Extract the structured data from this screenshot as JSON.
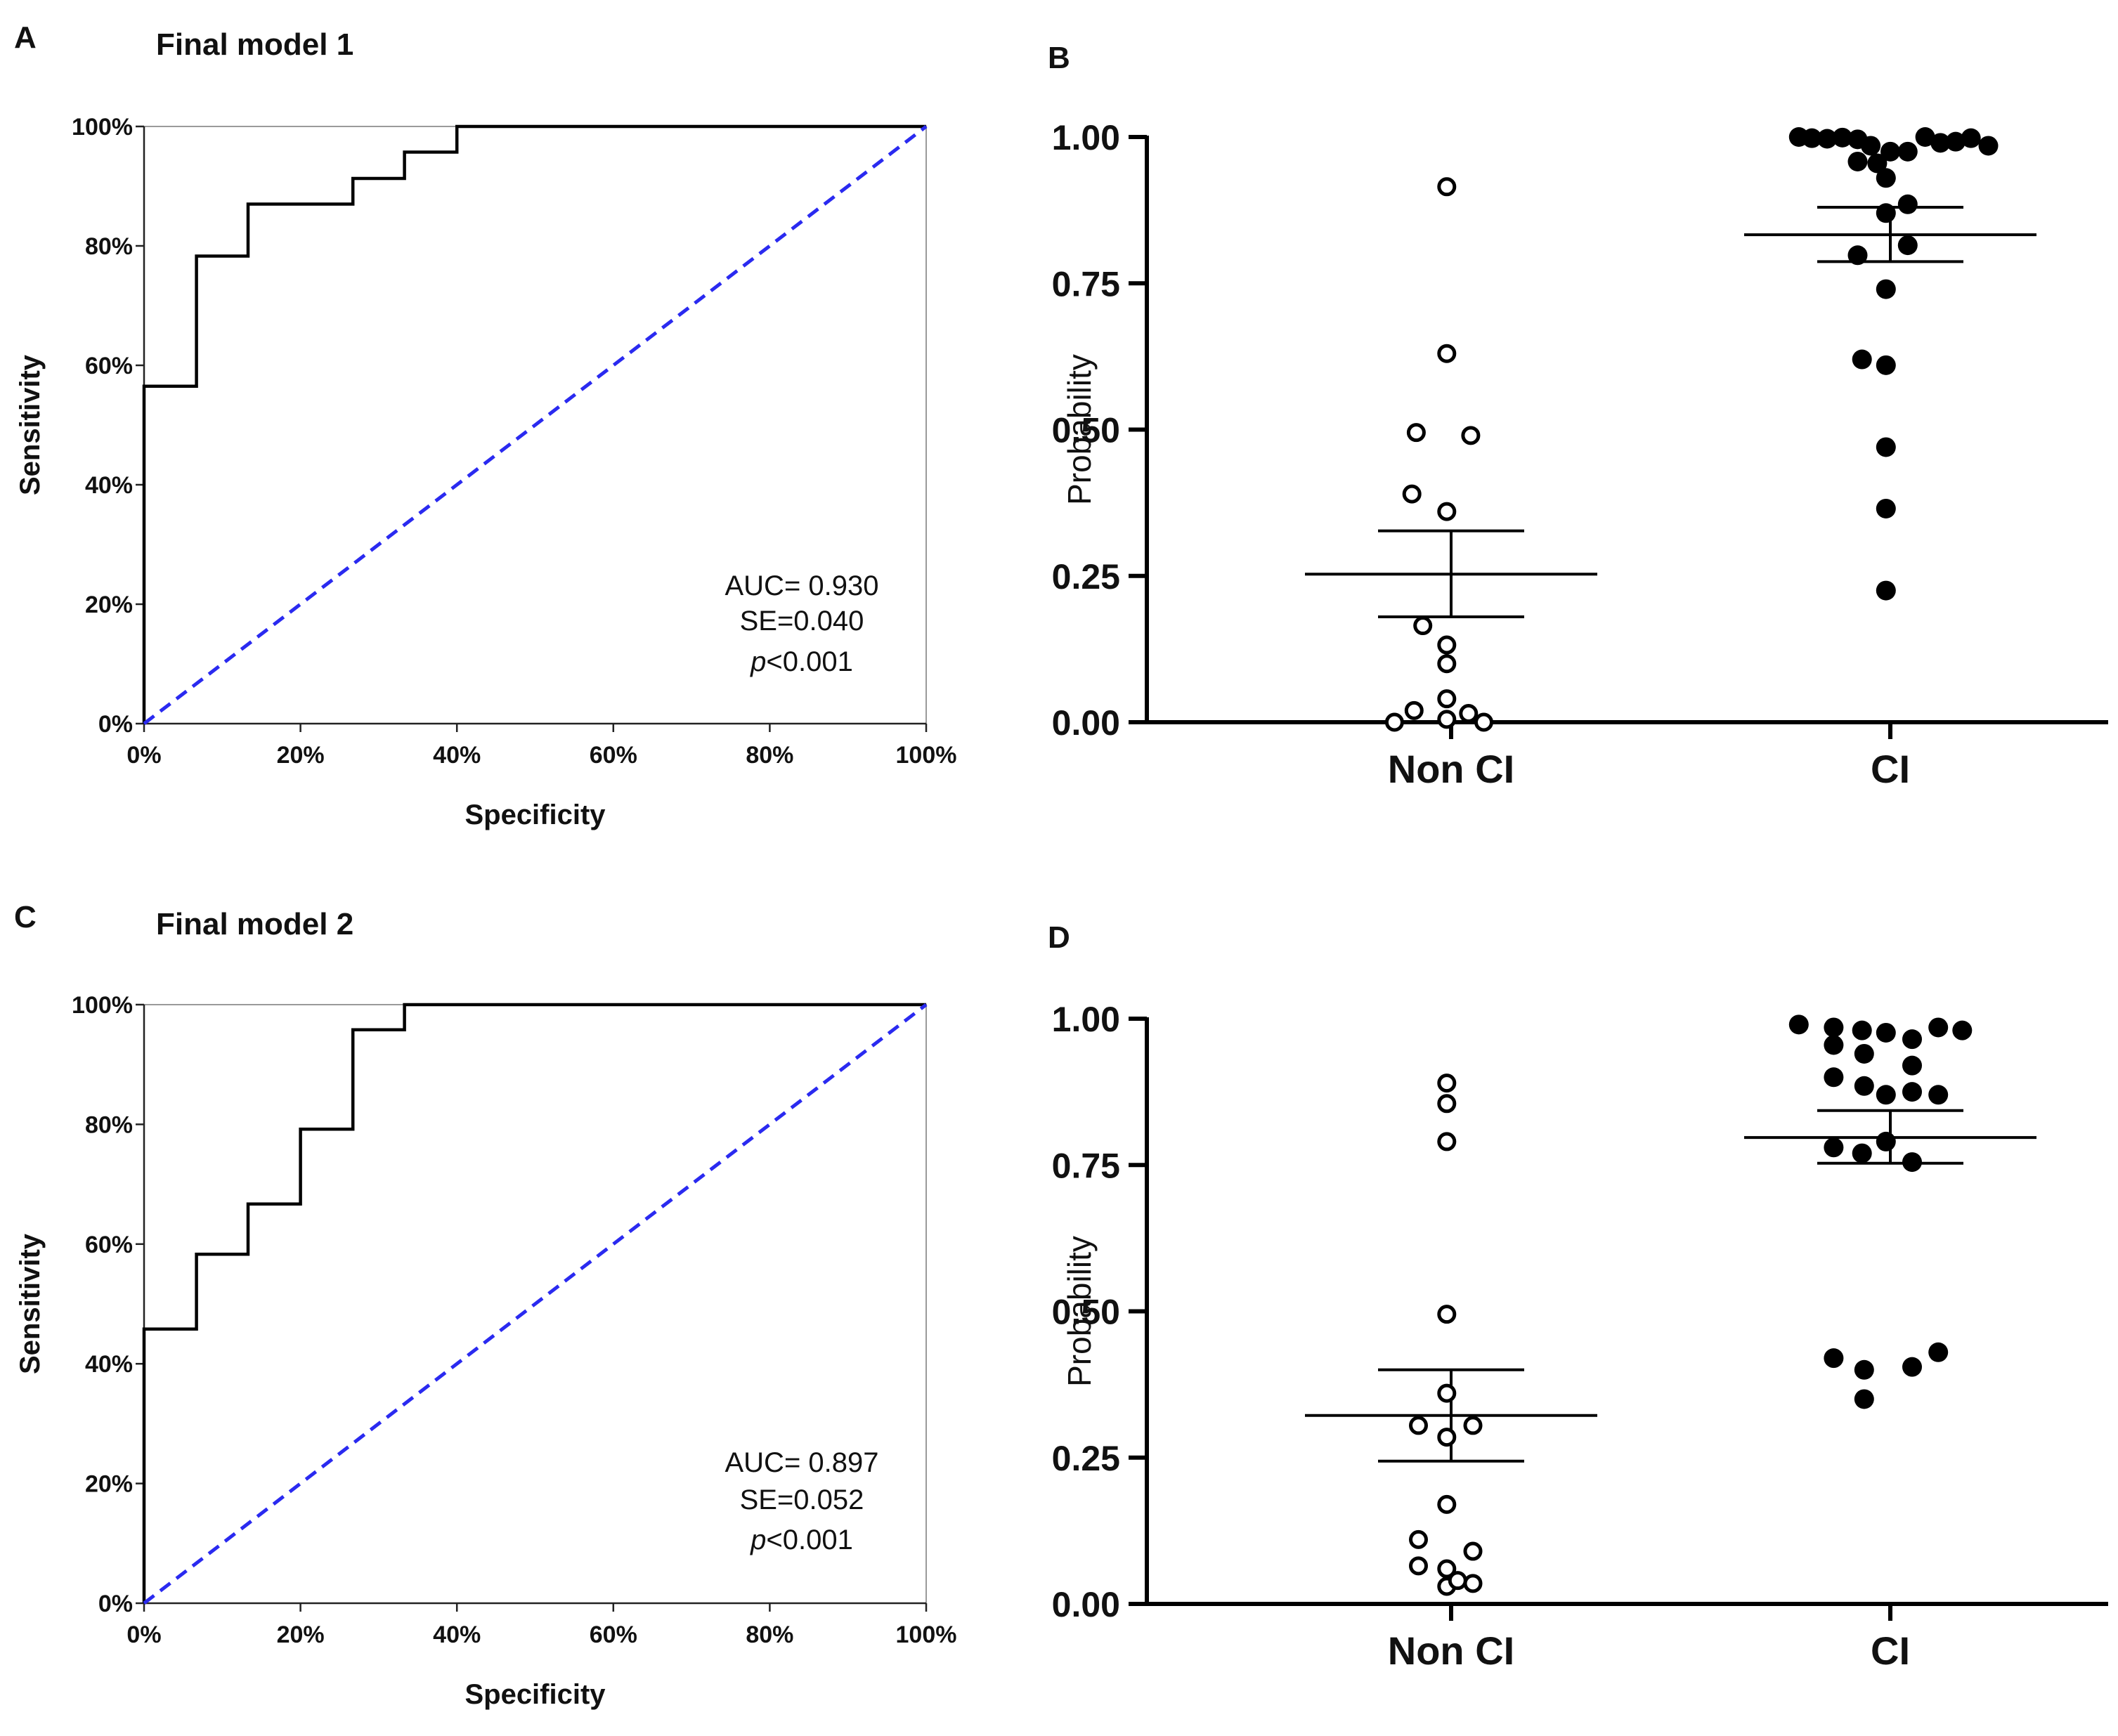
{
  "figure": {
    "panels": {
      "A": {
        "letter": "A"
      },
      "B": {
        "letter": "B"
      },
      "C": {
        "letter": "C"
      },
      "D": {
        "letter": "D"
      }
    }
  },
  "chart_data": [
    {
      "id": "A",
      "type": "line",
      "subtype": "roc_curve",
      "title": "Final model 1",
      "xlabel": "Specificity",
      "ylabel": "Sensitivity",
      "xlim": [
        0,
        100
      ],
      "ylim": [
        0,
        100
      ],
      "x_ticks": [
        "0%",
        "20%",
        "40%",
        "60%",
        "80%",
        "100%"
      ],
      "y_ticks": [
        "0%",
        "20%",
        "40%",
        "60%",
        "80%",
        "100%"
      ],
      "series": [
        {
          "name": "ROC",
          "color": "#000000",
          "style": "step",
          "points": [
            [
              0,
              0
            ],
            [
              0,
              56.5
            ],
            [
              6.7,
              56.5
            ],
            [
              6.7,
              78.3
            ],
            [
              13.3,
              78.3
            ],
            [
              13.3,
              87
            ],
            [
              26.7,
              87
            ],
            [
              26.7,
              91.3
            ],
            [
              33.3,
              91.3
            ],
            [
              33.3,
              95.7
            ],
            [
              40,
              95.7
            ],
            [
              40,
              100
            ],
            [
              100,
              100
            ]
          ]
        },
        {
          "name": "Reference",
          "color": "#2a2af0",
          "style": "dashed",
          "points": [
            [
              0,
              0
            ],
            [
              100,
              100
            ]
          ]
        }
      ],
      "annotation": {
        "auc": "AUC= 0.930",
        "se": "SE=0.040",
        "p_italic": "p",
        "p_rest": "<0.001"
      }
    },
    {
      "id": "B",
      "type": "scatter",
      "subtype": "dot_plot_mean_sem",
      "title": "",
      "xlabel": "",
      "ylabel": "Probability",
      "categories": [
        "Non CI",
        "CI"
      ],
      "ylim": [
        0,
        1
      ],
      "y_ticks": [
        "0.00",
        "0.25",
        "0.50",
        "0.75",
        "1.00"
      ],
      "groups": [
        {
          "name": "Non CI",
          "marker": "open",
          "mean": 0.253,
          "sem_low": 0.18,
          "sem_high": 0.327,
          "points": [
            [
              -0.02,
              0.915
            ],
            [
              -0.02,
              0.63
            ],
            [
              -0.02,
              0.36
            ],
            [
              -0.02,
              0.132
            ],
            [
              -0.02,
              0.1
            ],
            [
              -0.02,
              0.04
            ],
            [
              -0.02,
              0.005
            ],
            [
              -0.16,
              0.495
            ],
            [
              0.09,
              0.49
            ],
            [
              -0.18,
              0.39
            ],
            [
              -0.13,
              0.165
            ],
            [
              -0.17,
              0.02
            ],
            [
              0.08,
              0.015
            ],
            [
              -0.26,
              0.0
            ],
            [
              0.15,
              0.0
            ]
          ]
        },
        {
          "name": "CI",
          "marker": "filled",
          "mean": 0.833,
          "sem_low": 0.787,
          "sem_high": 0.88,
          "points": [
            [
              -0.42,
              1.0
            ],
            [
              -0.36,
              0.998
            ],
            [
              -0.29,
              0.997
            ],
            [
              -0.22,
              0.999
            ],
            [
              -0.15,
              0.996
            ],
            [
              -0.09,
              0.985
            ],
            [
              0.0,
              0.975
            ],
            [
              0.08,
              0.975
            ],
            [
              0.16,
              1.0
            ],
            [
              0.23,
              0.99
            ],
            [
              0.3,
              0.992
            ],
            [
              0.37,
              0.998
            ],
            [
              0.45,
              0.985
            ],
            [
              -0.15,
              0.958
            ],
            [
              -0.06,
              0.955
            ],
            [
              -0.02,
              0.93
            ],
            [
              0.08,
              0.885
            ],
            [
              -0.02,
              0.87
            ],
            [
              -0.15,
              0.798
            ],
            [
              0.08,
              0.815
            ],
            [
              -0.02,
              0.74
            ],
            [
              -0.13,
              0.62
            ],
            [
              -0.02,
              0.61
            ],
            [
              -0.02,
              0.47
            ],
            [
              -0.02,
              0.365
            ],
            [
              -0.02,
              0.225
            ]
          ]
        }
      ]
    },
    {
      "id": "C",
      "type": "line",
      "subtype": "roc_curve",
      "title": "Final model 2",
      "xlabel": "Specificity",
      "ylabel": "Sensitivity",
      "xlim": [
        0,
        100
      ],
      "ylim": [
        0,
        100
      ],
      "x_ticks": [
        "0%",
        "20%",
        "40%",
        "60%",
        "80%",
        "100%"
      ],
      "y_ticks": [
        "0%",
        "20%",
        "40%",
        "60%",
        "80%",
        "100%"
      ],
      "series": [
        {
          "name": "ROC",
          "color": "#000000",
          "style": "step",
          "points": [
            [
              0,
              0
            ],
            [
              0,
              45.8
            ],
            [
              6.7,
              45.8
            ],
            [
              6.7,
              58.3
            ],
            [
              13.3,
              58.3
            ],
            [
              13.3,
              66.7
            ],
            [
              20,
              66.7
            ],
            [
              20,
              79.2
            ],
            [
              26.7,
              79.2
            ],
            [
              26.7,
              95.8
            ],
            [
              33.3,
              95.8
            ],
            [
              33.3,
              100
            ],
            [
              100,
              100
            ]
          ]
        },
        {
          "name": "Reference",
          "color": "#2a2af0",
          "style": "dashed",
          "points": [
            [
              0,
              0
            ],
            [
              100,
              100
            ]
          ]
        }
      ],
      "annotation": {
        "auc": "AUC= 0.897",
        "se": "SE=0.052",
        "p_italic": "p",
        "p_rest": "<0.001"
      }
    },
    {
      "id": "D",
      "type": "scatter",
      "subtype": "dot_plot_mean_sem",
      "title": "",
      "xlabel": "",
      "ylabel": "Probability",
      "categories": [
        "Non CI",
        "CI"
      ],
      "ylim": [
        0,
        1
      ],
      "y_ticks": [
        "0.00",
        "0.25",
        "0.50",
        "0.75",
        "1.00"
      ],
      "groups": [
        {
          "name": "Non CI",
          "marker": "open",
          "mean": 0.322,
          "sem_low": 0.244,
          "sem_high": 0.4,
          "points": [
            [
              -0.02,
              0.89
            ],
            [
              -0.02,
              0.855
            ],
            [
              -0.02,
              0.79
            ],
            [
              -0.02,
              0.495
            ],
            [
              -0.02,
              0.36
            ],
            [
              -0.02,
              0.285
            ],
            [
              -0.02,
              0.17
            ],
            [
              -0.02,
              0.06
            ],
            [
              -0.02,
              0.03
            ],
            [
              -0.15,
              0.305
            ],
            [
              0.1,
              0.305
            ],
            [
              -0.15,
              0.11
            ],
            [
              0.1,
              0.09
            ],
            [
              -0.15,
              0.065
            ],
            [
              0.03,
              0.04
            ],
            [
              0.1,
              0.035
            ]
          ]
        },
        {
          "name": "CI",
          "marker": "filled",
          "mean": 0.797,
          "sem_low": 0.753,
          "sem_high": 0.843,
          "points": [
            [
              -0.42,
              0.99
            ],
            [
              -0.26,
              0.985
            ],
            [
              -0.13,
              0.98
            ],
            [
              -0.02,
              0.976
            ],
            [
              0.1,
              0.965
            ],
            [
              0.22,
              0.985
            ],
            [
              0.33,
              0.98
            ],
            [
              -0.26,
              0.955
            ],
            [
              -0.12,
              0.94
            ],
            [
              0.1,
              0.92
            ],
            [
              -0.26,
              0.9
            ],
            [
              -0.12,
              0.885
            ],
            [
              -0.02,
              0.87
            ],
            [
              0.1,
              0.875
            ],
            [
              0.22,
              0.87
            ],
            [
              -0.26,
              0.78
            ],
            [
              -0.13,
              0.77
            ],
            [
              -0.02,
              0.79
            ],
            [
              0.1,
              0.755
            ],
            [
              -0.26,
              0.42
            ],
            [
              -0.12,
              0.4
            ],
            [
              0.1,
              0.405
            ],
            [
              0.22,
              0.43
            ],
            [
              -0.12,
              0.35
            ]
          ]
        }
      ]
    }
  ]
}
